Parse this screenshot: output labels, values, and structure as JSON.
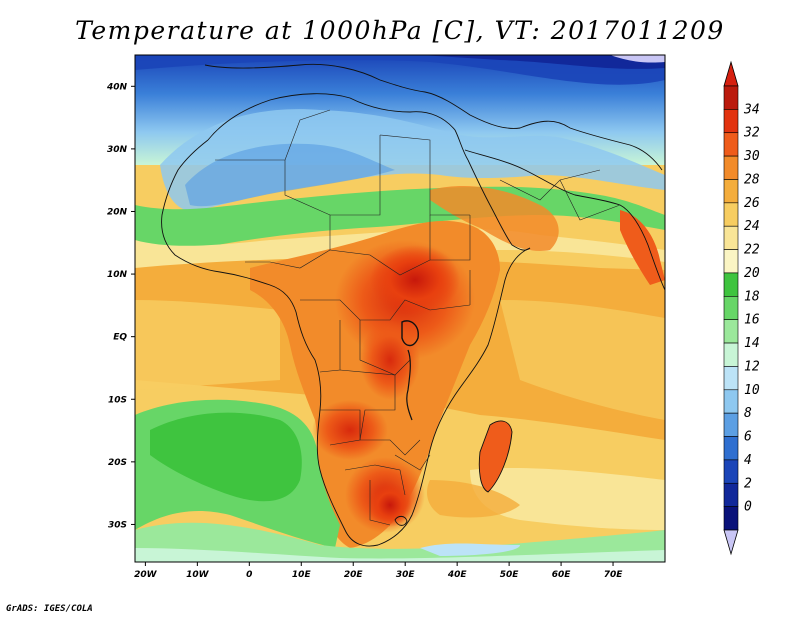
{
  "title": "Temperature at 1000hPa [C], VT: 2017011209",
  "credit": "GrADS: IGES/COLA",
  "map": {
    "lon_labels": [
      "20W",
      "10W",
      "0",
      "10E",
      "20E",
      "30E",
      "40E",
      "50E",
      "60E",
      "70E"
    ],
    "lat_labels": [
      "40N",
      "30N",
      "20N",
      "10N",
      "EQ",
      "10S",
      "20S",
      "30S"
    ],
    "lon_range": [
      -22,
      80
    ],
    "lat_range": [
      -36,
      45
    ]
  },
  "colorbar": {
    "labels": [
      "34",
      "32",
      "30",
      "28",
      "26",
      "24",
      "22",
      "20",
      "18",
      "16",
      "14",
      "12",
      "10",
      "8",
      "6",
      "4",
      "2",
      "0"
    ],
    "colors": [
      "#bb1a0d",
      "#e2330f",
      "#ef5c1b",
      "#f28b2a",
      "#f4ad3c",
      "#f7cd61",
      "#f9e597",
      "#fbf5c4",
      "#3fc43f",
      "#67d667",
      "#9be89b",
      "#c8f5d6",
      "#bce3f7",
      "#8ec8f0",
      "#5c9fe3",
      "#2f6fd0",
      "#1b45b8",
      "#11289a",
      "#0a127a"
    ],
    "min_arrow_color": "#c9c6f5",
    "max_arrow_color": "#d62010"
  }
}
